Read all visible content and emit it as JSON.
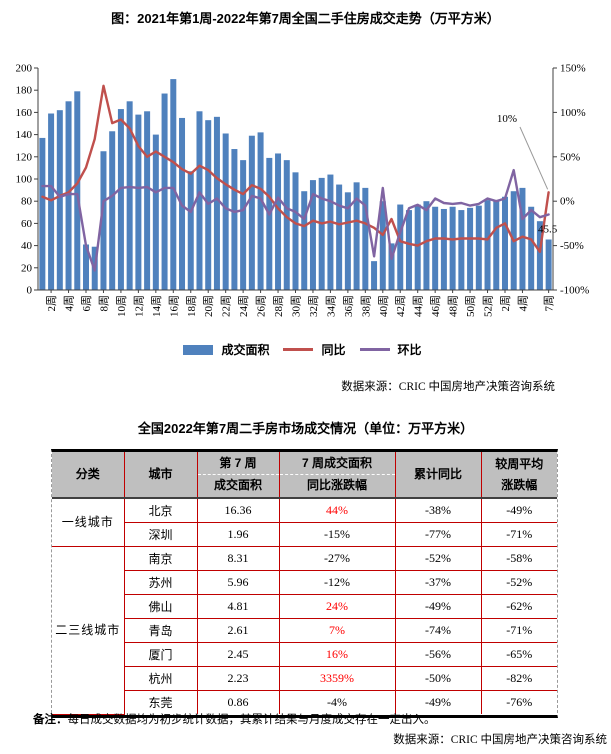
{
  "chart": {
    "title": "图：2021年第1周-2022年第7周全国二手住房成交走势（万平方米）",
    "legend": [
      "成交面积",
      "同比",
      "环比"
    ],
    "source": "数据来源：CRIC 中国房地产决策咨询系统",
    "annotation_last_yoy": "10%",
    "annotation_last_bar": "45.5"
  },
  "chart_data": {
    "type": "bar",
    "subtype": "bar+line combo, weekly, 2021 week1 - 2022 week7",
    "n_points": 59,
    "x_tick_labels": [
      "2周",
      "4周",
      "6周",
      "8周",
      "10周",
      "12周",
      "14周",
      "16周",
      "18周",
      "20周",
      "22周",
      "24周",
      "26周",
      "28周",
      "30周",
      "32周",
      "34周",
      "36周",
      "38周",
      "40周",
      "42周",
      "44周",
      "46周",
      "48周",
      "50周",
      "52周",
      "2周",
      "4周",
      "7周"
    ],
    "x_tick_bar_index": [
      1,
      3,
      5,
      7,
      9,
      11,
      13,
      15,
      17,
      19,
      21,
      23,
      25,
      27,
      29,
      31,
      33,
      35,
      37,
      39,
      41,
      43,
      45,
      47,
      49,
      51,
      53,
      55,
      58
    ],
    "left_axis": {
      "min": 0,
      "max": 200,
      "step": 20
    },
    "right_axis": {
      "min": -100,
      "max": 150,
      "step": 50,
      "suffix": "%"
    },
    "grid": false,
    "legend_position": "bottom",
    "series": [
      {
        "name": "成交面积",
        "type": "bar",
        "axis": "left",
        "color": "#4f81bd",
        "values": [
          137,
          159,
          162,
          170,
          179,
          41,
          39,
          125,
          143,
          163,
          170,
          158,
          161,
          140,
          177,
          190,
          155,
          107,
          161,
          153,
          156,
          141,
          127,
          117,
          139,
          142,
          119,
          123,
          117,
          106,
          89,
          99,
          101,
          104,
          95,
          88,
          97,
          92,
          26,
          80,
          42,
          77,
          72,
          77,
          80,
          75,
          73,
          75,
          72,
          74,
          76,
          81,
          80,
          84,
          89,
          92,
          75,
          62,
          45.5
        ]
      },
      {
        "name": "同比",
        "type": "line",
        "axis": "right",
        "color": "#c0504d",
        "values": [
          5,
          1,
          6,
          10,
          20,
          38,
          70,
          130,
          88,
          92,
          82,
          62,
          50,
          56,
          50,
          44,
          36,
          31,
          40,
          35,
          26,
          19,
          13,
          8,
          18,
          14,
          5,
          -8,
          -18,
          -25,
          -28,
          -22,
          -25,
          -23,
          -26,
          -24,
          -22,
          -25,
          -30,
          -38,
          -20,
          -45,
          -48,
          -50,
          -45,
          -42,
          -42,
          -43,
          -42,
          -42,
          -42,
          -43,
          -30,
          -25,
          -45,
          -40,
          -43,
          -57,
          10
        ]
      },
      {
        "name": "环比",
        "type": "line",
        "axis": "right",
        "color": "#8064a2",
        "values": [
          17,
          17,
          5,
          8,
          8,
          -50,
          -78,
          0,
          6,
          15,
          16,
          15,
          16,
          10,
          15,
          15,
          -5,
          -12,
          10,
          -3,
          3,
          -8,
          -12,
          -10,
          6,
          3,
          -15,
          4,
          -8,
          -12,
          -20,
          8,
          3,
          0,
          -5,
          -8,
          3,
          -5,
          -62,
          15,
          -65,
          -35,
          -8,
          -4,
          -10,
          3,
          -2,
          -3,
          -2,
          -5,
          -3,
          3,
          0,
          3,
          35,
          -20,
          -10,
          -18,
          -15
        ]
      }
    ],
    "title": "图：2021年第1周-2022年第7周全国二手住房成交走势（万平方米）",
    "annotations": [
      {
        "text": "10%",
        "target": "last 同比 point"
      },
      {
        "text": "45.5",
        "target": "last 成交面积 bar"
      }
    ]
  },
  "table": {
    "title": "全国2022年第7周二手房市场成交情况（单位：万平方米）",
    "headers": [
      {
        "lines": [
          "分类"
        ],
        "dashed": false
      },
      {
        "lines": [
          "城市"
        ],
        "dashed": false
      },
      {
        "lines": [
          "第 7 周",
          "成交面积"
        ],
        "dashed": true
      },
      {
        "lines": [
          "7 周成交面积",
          "同比涨跌幅"
        ],
        "dashed": true
      },
      {
        "lines": [
          "累计同比"
        ],
        "dashed": false
      },
      {
        "lines": [
          "较周平均",
          "涨跌幅"
        ],
        "dashed": false
      }
    ],
    "sections": [
      {
        "category": "一线城市",
        "rows": [
          [
            "北京",
            "16.36",
            "44%",
            "-38%",
            "-49%"
          ],
          [
            "深圳",
            "1.96",
            "-15%",
            "-77%",
            "-71%"
          ]
        ]
      },
      {
        "category": "二三线城市",
        "rows": [
          [
            "南京",
            "8.31",
            "-27%",
            "-52%",
            "-58%"
          ],
          [
            "苏州",
            "5.96",
            "-12%",
            "-37%",
            "-52%"
          ],
          [
            "佛山",
            "4.81",
            "24%",
            "-49%",
            "-62%"
          ],
          [
            "青岛",
            "2.61",
            "7%",
            "-74%",
            "-71%"
          ],
          [
            "厦门",
            "2.45",
            "16%",
            "-56%",
            "-65%"
          ],
          [
            "杭州",
            "2.23",
            "3359%",
            "-50%",
            "-82%"
          ],
          [
            "东莞",
            "0.86",
            "-4%",
            "-49%",
            "-76%"
          ]
        ]
      }
    ],
    "positive_color": "#ff0000"
  },
  "footer": {
    "note_label": "备注：",
    "note_text": "每日成交数据均为初步统计数据，其累计结果与月度成交存在一定出入。",
    "source": "数据来源：CRIC 中国房地产决策咨询系统"
  },
  "colors": {
    "bar": "#4f81bd",
    "yoy_line": "#c0504d",
    "wow_line": "#8064a2",
    "table_header_bg": "#bfbfbf",
    "table_border": "#c00000",
    "positive_pct": "#ff0000"
  }
}
